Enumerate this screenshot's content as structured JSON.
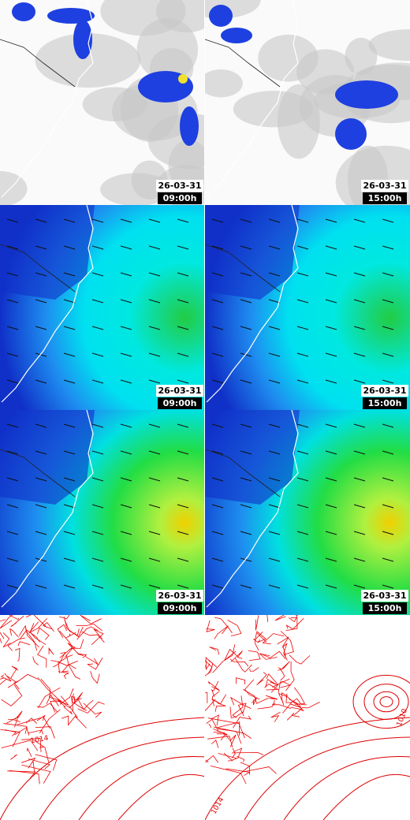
{
  "panels": [
    {
      "date": "26-03-31",
      "time": "09:00h"
    },
    {
      "date": "26-03-31",
      "time": "15:00h"
    },
    {
      "date": "26-03-31",
      "time": "09:00h"
    },
    {
      "date": "26-03-31",
      "time": "15:00h"
    },
    {
      "date": "26-03-31",
      "time": "09:00h"
    },
    {
      "date": "26-03-31",
      "time": "15:00h"
    }
  ],
  "isobar_labels": [
    "1014",
    "1010",
    "1014"
  ]
}
